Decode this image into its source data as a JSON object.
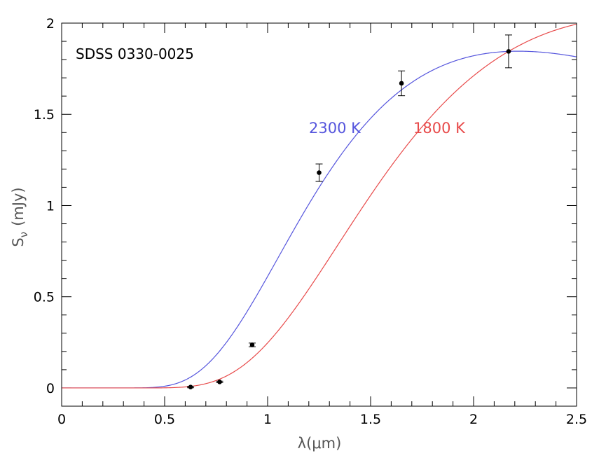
{
  "chart_data": {
    "type": "scatter",
    "xlabel": "λ(μm)",
    "ylabel": "S",
    "ylabel_subscript": "ν",
    "ylabel_unit": "(mJy)",
    "xlim": [
      0,
      2.5
    ],
    "ylim": [
      -0.1,
      2.0
    ],
    "xticks": [
      0,
      0.5,
      1,
      1.5,
      2,
      2.5
    ],
    "xtick_labels": [
      "0",
      "0.5",
      "1",
      "1.5",
      "2",
      "2.5"
    ],
    "yticks": [
      0,
      0.5,
      1,
      1.5,
      2
    ],
    "ytick_labels": [
      "0",
      "0.5",
      "1",
      "1.5",
      "2"
    ],
    "x_minor_step": 0.1,
    "y_minor_step": 0.1,
    "grid": false,
    "annotation": "SDSS 0330-0025",
    "points": {
      "x": [
        0.626,
        0.767,
        0.925,
        1.25,
        1.65,
        2.17
      ],
      "y": [
        0.005,
        0.033,
        0.236,
        1.18,
        1.67,
        1.845
      ],
      "yerr": [
        0.004,
        0.004,
        0.01,
        0.048,
        0.068,
        0.09
      ]
    },
    "series": [
      {
        "label": "2300 K",
        "temperature_k": 2300,
        "color": "#5555dd"
      },
      {
        "label": "1800 K",
        "temperature_k": 1800,
        "color": "#e84b4b"
      }
    ],
    "model": {
      "type": "blackbody",
      "normalize_at_um": 2.17,
      "normalize_value": 1.845
    }
  }
}
